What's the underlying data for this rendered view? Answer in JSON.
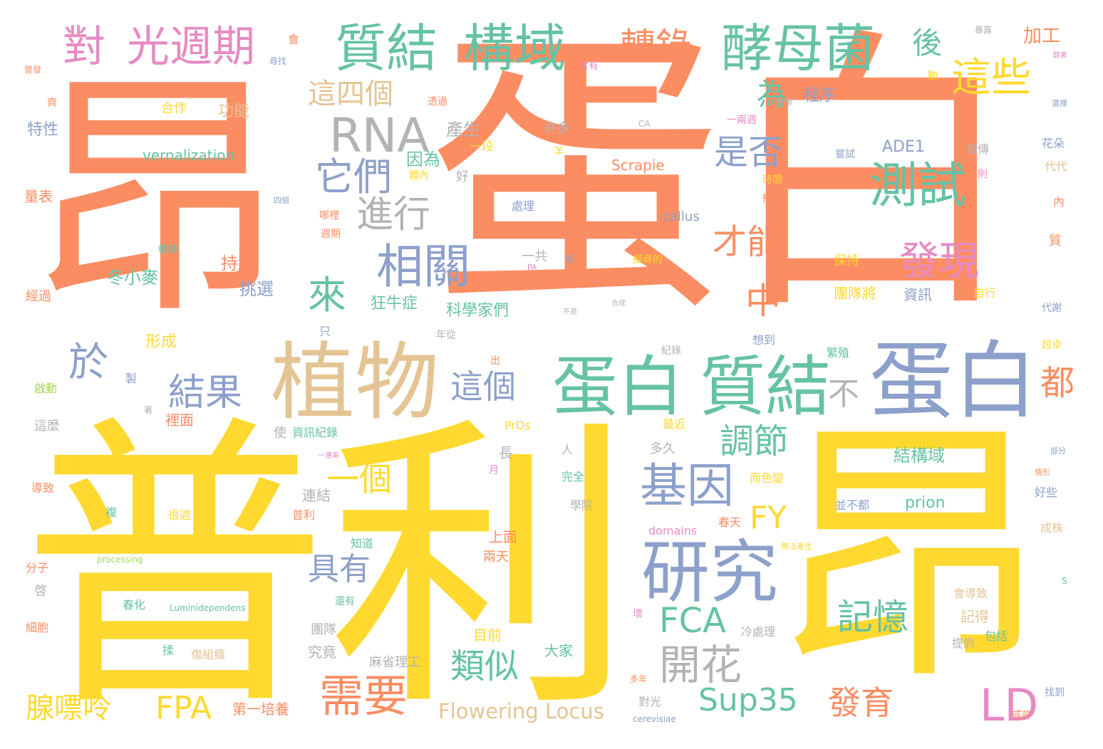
{
  "palette": {
    "orange": "#fc8d62",
    "yellow": "#ffd92f",
    "green": "#66c2a5",
    "blue": "#8da0cb",
    "pink": "#e78ac3",
    "tan": "#e5c494",
    "gray": "#b3b3b3",
    "lime": "#a6d854"
  },
  "words": [
    {
      "text": "昂",
      "color": "orange"
    },
    {
      "text": "蛋白",
      "color": "orange"
    },
    {
      "text": "普利",
      "color": "yellow"
    },
    {
      "text": "昂",
      "color": "yellow"
    },
    {
      "text": "植物",
      "color": "tan"
    },
    {
      "text": "蛋白",
      "color": "blue"
    },
    {
      "text": "蛋白",
      "color": "green"
    },
    {
      "text": "質結",
      "color": "green"
    },
    {
      "text": "研究",
      "color": "blue"
    },
    {
      "text": "質結",
      "color": "green"
    },
    {
      "text": "構域",
      "color": "green"
    },
    {
      "text": "酵母菌",
      "color": "green"
    },
    {
      "text": "光週期",
      "color": "pink"
    },
    {
      "text": "對",
      "color": "pink"
    },
    {
      "text": "RNA",
      "color": "gray"
    },
    {
      "text": "測試",
      "color": "green"
    },
    {
      "text": "相關",
      "color": "blue"
    },
    {
      "text": "基因",
      "color": "blue"
    },
    {
      "text": "開花",
      "color": "gray"
    },
    {
      "text": "需要",
      "color": "orange"
    },
    {
      "text": "LD",
      "color": "pink"
    },
    {
      "text": "這些",
      "color": "yellow"
    },
    {
      "text": "轉錄",
      "color": "orange"
    },
    {
      "text": "它們",
      "color": "blue"
    },
    {
      "text": "進行",
      "color": "gray"
    },
    {
      "text": "這四個",
      "color": "tan"
    },
    {
      "text": "於",
      "color": "blue"
    },
    {
      "text": "結果",
      "color": "blue"
    },
    {
      "text": "來",
      "color": "green"
    },
    {
      "text": "發現",
      "color": "pink"
    },
    {
      "text": "是否",
      "color": "blue"
    },
    {
      "text": "才能",
      "color": "orange"
    },
    {
      "text": "中",
      "color": "orange"
    },
    {
      "text": "為",
      "color": "green"
    },
    {
      "text": "後",
      "color": "green"
    },
    {
      "text": "都",
      "color": "orange"
    },
    {
      "text": "不",
      "color": "gray"
    },
    {
      "text": "調節",
      "color": "green"
    },
    {
      "text": "一個",
      "color": "yellow"
    },
    {
      "text": "這個",
      "color": "blue"
    },
    {
      "text": "FY",
      "color": "yellow"
    },
    {
      "text": "具有",
      "color": "blue"
    },
    {
      "text": "FCA",
      "color": "green"
    },
    {
      "text": "記憶",
      "color": "green"
    },
    {
      "text": "類似",
      "color": "green"
    },
    {
      "text": "FPA",
      "color": "yellow"
    },
    {
      "text": "Sup35",
      "color": "green"
    },
    {
      "text": "發育",
      "color": "orange"
    },
    {
      "text": "腺嘌呤",
      "color": "yellow"
    },
    {
      "text": "加工",
      "color": "orange"
    },
    {
      "text": "Flowering Locus",
      "color": "tan"
    },
    {
      "text": "vernalization",
      "color": "green"
    },
    {
      "text": "產生",
      "color": "gray"
    },
    {
      "text": "特性",
      "color": "blue"
    },
    {
      "text": "功能",
      "color": "tan"
    },
    {
      "text": "合作",
      "color": "yellow"
    },
    {
      "text": "程序",
      "color": "blue"
    },
    {
      "text": "因為",
      "color": "green"
    },
    {
      "text": "許多",
      "color": "gray"
    },
    {
      "text": "一段",
      "color": "yellow"
    },
    {
      "text": "ADE1",
      "color": "blue"
    },
    {
      "text": "Scrapie",
      "color": "orange"
    },
    {
      "text": "處理",
      "color": "blue"
    },
    {
      "text": "callus",
      "color": "blue"
    },
    {
      "text": "一共",
      "color": "gray"
    },
    {
      "text": "持續",
      "color": "orange"
    },
    {
      "text": "冬小麥",
      "color": "green"
    },
    {
      "text": "挑選",
      "color": "blue"
    },
    {
      "text": "狂牛症",
      "color": "green"
    },
    {
      "text": "科學家們",
      "color": "green"
    },
    {
      "text": "形成",
      "color": "yellow"
    },
    {
      "text": "保持",
      "color": "yellow"
    },
    {
      "text": "團隊將",
      "color": "yellow"
    },
    {
      "text": "資訊",
      "color": "blue"
    },
    {
      "text": "自行",
      "color": "yellow"
    },
    {
      "text": "結構域",
      "color": "green"
    },
    {
      "text": "prion",
      "color": "green"
    },
    {
      "text": "並不都",
      "color": "blue"
    },
    {
      "text": "domains",
      "color": "pink"
    },
    {
      "text": "春天",
      "color": "orange"
    },
    {
      "text": "上面",
      "color": "orange"
    },
    {
      "text": "兩天",
      "color": "orange"
    },
    {
      "text": "知道",
      "color": "green"
    },
    {
      "text": "連結",
      "color": "gray"
    },
    {
      "text": "普利",
      "color": "orange"
    },
    {
      "text": "很適",
      "color": "yellow"
    },
    {
      "text": "學院",
      "color": "gray"
    },
    {
      "text": "長",
      "color": "gray"
    },
    {
      "text": "完全",
      "color": "green"
    },
    {
      "text": "多久",
      "color": "gray"
    },
    {
      "text": "最近",
      "color": "yellow"
    },
    {
      "text": "PrDs",
      "color": "yellow"
    },
    {
      "text": "資訊紀錄",
      "color": "green"
    },
    {
      "text": "使",
      "color": "gray"
    },
    {
      "text": "裡面",
      "color": "orange"
    },
    {
      "text": "這麼",
      "color": "gray"
    },
    {
      "text": "啟動",
      "color": "lime"
    },
    {
      "text": "導致",
      "color": "orange"
    },
    {
      "text": "團隊",
      "color": "gray"
    },
    {
      "text": "究竟",
      "color": "gray"
    },
    {
      "text": "目前",
      "color": "yellow"
    },
    {
      "text": "大家",
      "color": "green"
    },
    {
      "text": "麻省理工",
      "color": "gray"
    },
    {
      "text": "第一培養",
      "color": "orange"
    },
    {
      "text": "冷處理",
      "color": "gray"
    },
    {
      "text": "記得",
      "color": "tan"
    },
    {
      "text": "會導致",
      "color": "tan"
    },
    {
      "text": "包括",
      "color": "green"
    },
    {
      "text": "提到",
      "color": "gray"
    },
    {
      "text": "春化",
      "color": "green"
    },
    {
      "text": "Luminidependens",
      "color": "green"
    },
    {
      "text": "processing",
      "color": "lime"
    },
    {
      "text": "還有",
      "color": "green"
    },
    {
      "text": "傷組織",
      "color": "tan"
    },
    {
      "text": "分子",
      "color": "orange"
    },
    {
      "text": "細胞",
      "color": "orange"
    },
    {
      "text": "量表",
      "color": "orange"
    },
    {
      "text": "經過",
      "color": "orange"
    },
    {
      "text": "轉譯",
      "color": "green"
    },
    {
      "text": "週期",
      "color": "orange"
    },
    {
      "text": "哪裡",
      "color": "orange"
    },
    {
      "text": "年從",
      "color": "gray"
    },
    {
      "text": "紀錄",
      "color": "gray"
    },
    {
      "text": "想到",
      "color": "blue"
    },
    {
      "text": "繁殖",
      "color": "green"
    },
    {
      "text": "時間",
      "color": "yellow"
    },
    {
      "text": "擬南",
      "color": "orange"
    },
    {
      "text": "相傳",
      "color": "gray"
    },
    {
      "text": "嘗試",
      "color": "blue"
    },
    {
      "text": "代代",
      "color": "tan"
    },
    {
      "text": "花朵",
      "color": "blue"
    },
    {
      "text": "代謝",
      "color": "blue"
    },
    {
      "text": "超卓",
      "color": "yellow"
    },
    {
      "text": "好些",
      "color": "blue"
    },
    {
      "text": "成株",
      "color": "tan"
    },
    {
      "text": "擬尋的",
      "color": "yellow"
    },
    {
      "text": "而色變",
      "color": "yellow"
    },
    {
      "text": "對光",
      "color": "gray"
    },
    {
      "text": "cerevisiae",
      "color": "blue"
    },
    {
      "text": "多年",
      "color": "orange"
    },
    {
      "text": "或許",
      "color": "orange"
    },
    {
      "text": "找到",
      "color": "blue"
    },
    {
      "text": "一兩週",
      "color": "pink"
    },
    {
      "text": "透過",
      "color": "orange"
    },
    {
      "text": "尋找",
      "color": "blue"
    },
    {
      "text": "暴露",
      "color": "gray"
    },
    {
      "text": "含有",
      "color": "pink"
    },
    {
      "text": "CA",
      "color": "gray"
    },
    {
      "text": "好",
      "color": "gray"
    },
    {
      "text": "PA",
      "color": "pink"
    },
    {
      "text": "明",
      "color": "blue"
    },
    {
      "text": "只",
      "color": "blue"
    },
    {
      "text": "製",
      "color": "blue"
    },
    {
      "text": "著",
      "color": "gray"
    },
    {
      "text": "啓",
      "color": "gray"
    },
    {
      "text": "揉",
      "color": "green"
    },
    {
      "text": "複",
      "color": "green"
    },
    {
      "text": "人",
      "color": "gray"
    },
    {
      "text": "出",
      "color": "orange"
    },
    {
      "text": "月",
      "color": "pink"
    },
    {
      "text": "壞",
      "color": "pink"
    },
    {
      "text": "質",
      "color": "orange"
    },
    {
      "text": "內",
      "color": "orange"
    },
    {
      "text": "則",
      "color": "pink"
    },
    {
      "text": "動",
      "color": "yellow"
    },
    {
      "text": "羊",
      "color": "yellow"
    },
    {
      "text": "會",
      "color": "orange"
    },
    {
      "text": "齊",
      "color": "orange"
    },
    {
      "text": "S",
      "color": "green"
    },
    {
      "text": "體內",
      "color": "yellow"
    },
    {
      "text": "四個",
      "color": "blue"
    },
    {
      "text": "無法產生",
      "color": "yellow"
    },
    {
      "text": "有帶",
      "color": "gray"
    },
    {
      "text": "時",
      "color": "orange"
    },
    {
      "text": "不是",
      "color": "gray"
    },
    {
      "text": "合成",
      "color": "gray"
    },
    {
      "text": "一連串",
      "color": "pink"
    },
    {
      "text": "曾發",
      "color": "orange"
    },
    {
      "text": "選擇",
      "color": "blue"
    },
    {
      "text": "部分",
      "color": "blue"
    },
    {
      "text": "情形",
      "color": "orange"
    },
    {
      "text": "醇素",
      "color": "pink"
    }
  ]
}
